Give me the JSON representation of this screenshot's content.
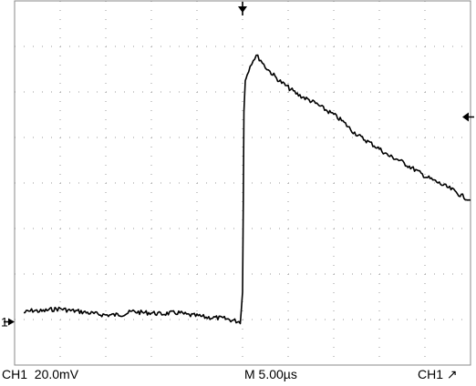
{
  "readouts": {
    "channel": "CH1",
    "volts_per_div": "20.0mV",
    "timebase": "M 5.00µs",
    "trigger_source": "CH1",
    "trigger_slope_symbol": "↗"
  },
  "markers": {
    "channel_ground_label": "1"
  },
  "chart_data": {
    "type": "line",
    "x_unit_per_div": "5.00µs",
    "y_unit_per_div": "20.0mV",
    "grid": true,
    "x_divisions": 10,
    "y_divisions": 8,
    "xlim": [
      0,
      10
    ],
    "ylim": [
      0,
      8
    ],
    "trigger_position_div": 5.0,
    "trigger_level_div": 5.45,
    "ground_level_div": 0.95,
    "series": [
      {
        "points": [
          [
            0.2,
            1.15
          ],
          [
            0.4,
            1.2
          ],
          [
            0.6,
            1.18
          ],
          [
            0.8,
            1.22
          ],
          [
            1.0,
            1.24
          ],
          [
            1.2,
            1.2
          ],
          [
            1.4,
            1.18
          ],
          [
            1.6,
            1.15
          ],
          [
            1.8,
            1.12
          ],
          [
            2.0,
            1.1
          ],
          [
            2.2,
            1.1
          ],
          [
            2.4,
            1.12
          ],
          [
            2.6,
            1.18
          ],
          [
            2.8,
            1.15
          ],
          [
            3.0,
            1.15
          ],
          [
            3.2,
            1.12
          ],
          [
            3.4,
            1.14
          ],
          [
            3.6,
            1.15
          ],
          [
            3.8,
            1.1
          ],
          [
            4.0,
            1.08
          ],
          [
            4.2,
            1.05
          ],
          [
            4.4,
            1.04
          ],
          [
            4.6,
            1.02
          ],
          [
            4.8,
            0.98
          ],
          [
            4.95,
            0.95
          ],
          [
            5.0,
            1.6
          ],
          [
            5.03,
            5.6
          ],
          [
            5.06,
            6.25
          ],
          [
            5.1,
            6.4
          ],
          [
            5.2,
            6.65
          ],
          [
            5.3,
            6.8
          ],
          [
            5.4,
            6.7
          ],
          [
            5.5,
            6.55
          ],
          [
            5.6,
            6.45
          ],
          [
            5.8,
            6.25
          ],
          [
            6.0,
            6.1
          ],
          [
            6.2,
            5.95
          ],
          [
            6.4,
            5.85
          ],
          [
            6.6,
            5.75
          ],
          [
            6.8,
            5.62
          ],
          [
            7.0,
            5.5
          ],
          [
            7.2,
            5.35
          ],
          [
            7.4,
            5.15
          ],
          [
            7.6,
            5.0
          ],
          [
            7.8,
            4.88
          ],
          [
            8.0,
            4.75
          ],
          [
            8.2,
            4.6
          ],
          [
            8.4,
            4.52
          ],
          [
            8.6,
            4.4
          ],
          [
            8.8,
            4.28
          ],
          [
            9.0,
            4.15
          ],
          [
            9.2,
            4.05
          ],
          [
            9.4,
            3.95
          ],
          [
            9.6,
            3.85
          ],
          [
            9.8,
            3.72
          ],
          [
            10.0,
            3.62
          ]
        ]
      }
    ]
  }
}
